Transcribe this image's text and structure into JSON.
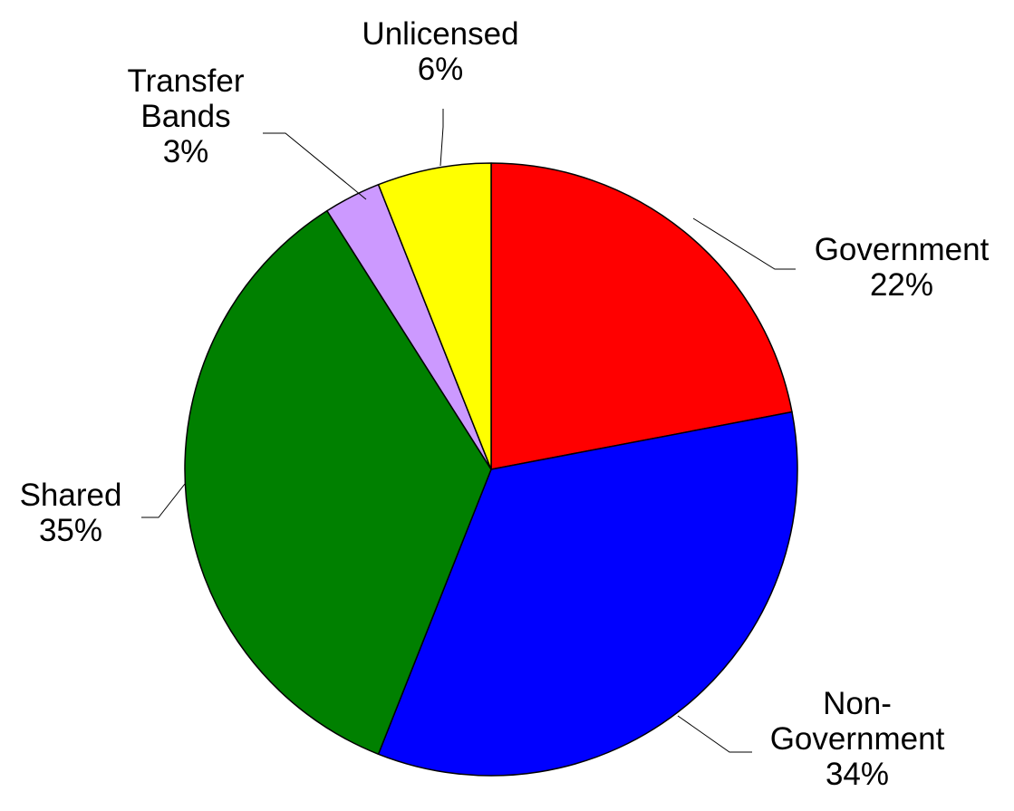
{
  "chart_data": {
    "type": "pie",
    "start_angle_deg": 0,
    "direction": "clockwise",
    "legend": "none",
    "slices": [
      {
        "name": "Government",
        "value": 22,
        "color": "#ff0000",
        "label_lines": [
          "Government",
          "22%"
        ]
      },
      {
        "name": "Non-Government",
        "value": 34,
        "color": "#0000ff",
        "label_lines": [
          "Non-",
          "Government",
          "34%"
        ]
      },
      {
        "name": "Shared",
        "value": 35,
        "color": "#008000",
        "label_lines": [
          "Shared",
          "35%"
        ]
      },
      {
        "name": "Transfer Bands",
        "value": 3,
        "color": "#cc99ff",
        "label_lines": [
          "Transfer",
          "Bands",
          "3%"
        ]
      },
      {
        "name": "Unlicensed",
        "value": 6,
        "color": "#ffff00",
        "label_lines": [
          "Unlicensed",
          "6%"
        ]
      }
    ]
  }
}
